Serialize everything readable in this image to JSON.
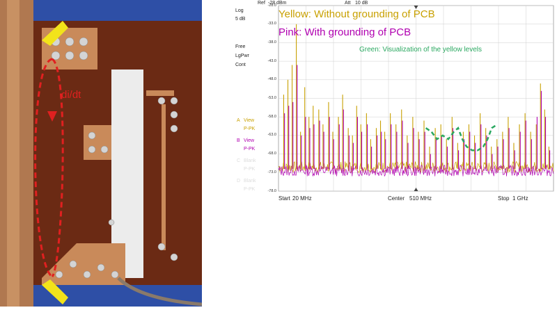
{
  "photo": {
    "annotation": "di/dt",
    "colors": {
      "board": "#6b2a14",
      "blue": "#2e4fa6",
      "copper": "#c98a5a",
      "arrow": "#f2e31a",
      "current_path": "#e02020",
      "tape": "#ececec"
    }
  },
  "scope": {
    "ref_label": "Ref",
    "ref_value": "-28 dBm",
    "att_label": "Att",
    "att_value": "10 dB",
    "scale_type": "Log",
    "scale_div": "5 dB",
    "mode1": "Free",
    "mode2": "LgPwr",
    "mode3": "Cont",
    "traces": [
      {
        "letter": "A",
        "state": "View",
        "detector": "P-PK",
        "color": "#c8a000"
      },
      {
        "letter": "B",
        "state": "View",
        "detector": "P-PK",
        "color": "#b000b0"
      },
      {
        "letter": "C",
        "state": "Blank",
        "detector": "P-PK",
        "color": "#dcdcdc"
      },
      {
        "letter": "D",
        "state": "Blank",
        "detector": "P-PK",
        "color": "#dcdcdc"
      }
    ],
    "start_label": "Start",
    "start_value": "20 MHz",
    "center_label": "Center",
    "center_value": "510 MHz",
    "stop_label": "Stop",
    "stop_value": "1 GHz",
    "legend_yellow": "Yellow: Without grounding of PCB",
    "legend_pink": "Pink: With grounding of PCB",
    "legend_green": "Green: Visualization of the yellow levels",
    "colors": {
      "yellow": "#c8a000",
      "pink": "#b000b0",
      "green": "#2aa860",
      "grid": "#cfcfcf"
    }
  },
  "chart_data": {
    "type": "line",
    "x_unit": "MHz",
    "y_unit": "dBm",
    "xlim": [
      20,
      1000
    ],
    "ylim": [
      -78,
      -28
    ],
    "y_ticks": [
      "-28.0",
      "-33.0",
      "-38.0",
      "-43.0",
      "-48.0",
      "-53.0",
      "-58.0",
      "-63.0",
      "-68.0",
      "-73.0",
      "-78.0"
    ],
    "noise_floor": -72,
    "series": [
      {
        "name": "Yellow: Without grounding of PCB",
        "peaks": [
          [
            40,
            -52
          ],
          [
            55,
            -48
          ],
          [
            70,
            -44
          ],
          [
            85,
            -33
          ],
          [
            100,
            -62
          ],
          [
            115,
            -50
          ],
          [
            130,
            -58
          ],
          [
            145,
            -55
          ],
          [
            165,
            -56
          ],
          [
            180,
            -60
          ],
          [
            200,
            -54
          ],
          [
            215,
            -62
          ],
          [
            235,
            -58
          ],
          [
            250,
            -52
          ],
          [
            270,
            -61
          ],
          [
            285,
            -63
          ],
          [
            300,
            -55
          ],
          [
            315,
            -60
          ],
          [
            335,
            -57
          ],
          [
            350,
            -64
          ],
          [
            370,
            -61
          ],
          [
            385,
            -59
          ],
          [
            400,
            -62
          ],
          [
            420,
            -57
          ],
          [
            440,
            -60
          ],
          [
            460,
            -56
          ],
          [
            480,
            -63
          ],
          [
            500,
            -58
          ],
          [
            520,
            -62
          ],
          [
            540,
            -59
          ],
          [
            560,
            -66
          ],
          [
            580,
            -61
          ],
          [
            600,
            -60
          ],
          [
            620,
            -64
          ],
          [
            640,
            -58
          ],
          [
            660,
            -65
          ],
          [
            680,
            -62
          ],
          [
            700,
            -60
          ],
          [
            720,
            -63
          ],
          [
            740,
            -57
          ],
          [
            760,
            -61
          ],
          [
            780,
            -66
          ],
          [
            800,
            -64
          ],
          [
            820,
            -62
          ],
          [
            840,
            -58
          ],
          [
            860,
            -65
          ],
          [
            880,
            -60
          ],
          [
            900,
            -57
          ],
          [
            920,
            -62
          ],
          [
            940,
            -60
          ],
          [
            955,
            -49
          ],
          [
            970,
            -56
          ],
          [
            985,
            -66
          ]
        ]
      },
      {
        "name": "Pink: With grounding of PCB",
        "peaks": [
          [
            40,
            -57
          ],
          [
            55,
            -55
          ],
          [
            70,
            -54
          ],
          [
            85,
            -44
          ],
          [
            100,
            -63
          ],
          [
            115,
            -58
          ],
          [
            130,
            -61
          ],
          [
            145,
            -60
          ],
          [
            165,
            -59
          ],
          [
            180,
            -62
          ],
          [
            200,
            -58
          ],
          [
            215,
            -64
          ],
          [
            235,
            -60
          ],
          [
            250,
            -56
          ],
          [
            270,
            -63
          ],
          [
            285,
            -65
          ],
          [
            300,
            -58
          ],
          [
            315,
            -62
          ],
          [
            335,
            -60
          ],
          [
            350,
            -66
          ],
          [
            370,
            -63
          ],
          [
            385,
            -62
          ],
          [
            400,
            -64
          ],
          [
            420,
            -60
          ],
          [
            440,
            -62
          ],
          [
            460,
            -59
          ],
          [
            480,
            -65
          ],
          [
            500,
            -61
          ],
          [
            520,
            -64
          ],
          [
            540,
            -62
          ],
          [
            560,
            -68
          ],
          [
            580,
            -64
          ],
          [
            600,
            -63
          ],
          [
            620,
            -66
          ],
          [
            640,
            -61
          ],
          [
            660,
            -67
          ],
          [
            680,
            -64
          ],
          [
            700,
            -62
          ],
          [
            720,
            -65
          ],
          [
            740,
            -60
          ],
          [
            760,
            -63
          ],
          [
            780,
            -68
          ],
          [
            800,
            -66
          ],
          [
            820,
            -64
          ],
          [
            840,
            -61
          ],
          [
            860,
            -67
          ],
          [
            880,
            -62
          ],
          [
            900,
            -59
          ],
          [
            920,
            -64
          ],
          [
            940,
            -58
          ],
          [
            955,
            -51
          ],
          [
            970,
            -58
          ],
          [
            985,
            -67
          ]
        ]
      },
      {
        "name": "Green: Visualization of the yellow levels",
        "points": [
          [
            545,
            -61
          ],
          [
            565,
            -62
          ],
          [
            585,
            -64
          ],
          [
            605,
            -63
          ],
          [
            625,
            -64
          ],
          [
            645,
            -62
          ],
          [
            660,
            -61
          ],
          [
            675,
            -64
          ],
          [
            690,
            -66
          ],
          [
            710,
            -67
          ],
          [
            730,
            -67
          ],
          [
            750,
            -66
          ],
          [
            765,
            -64
          ],
          [
            780,
            -61
          ],
          [
            800,
            -60
          ]
        ]
      }
    ]
  }
}
